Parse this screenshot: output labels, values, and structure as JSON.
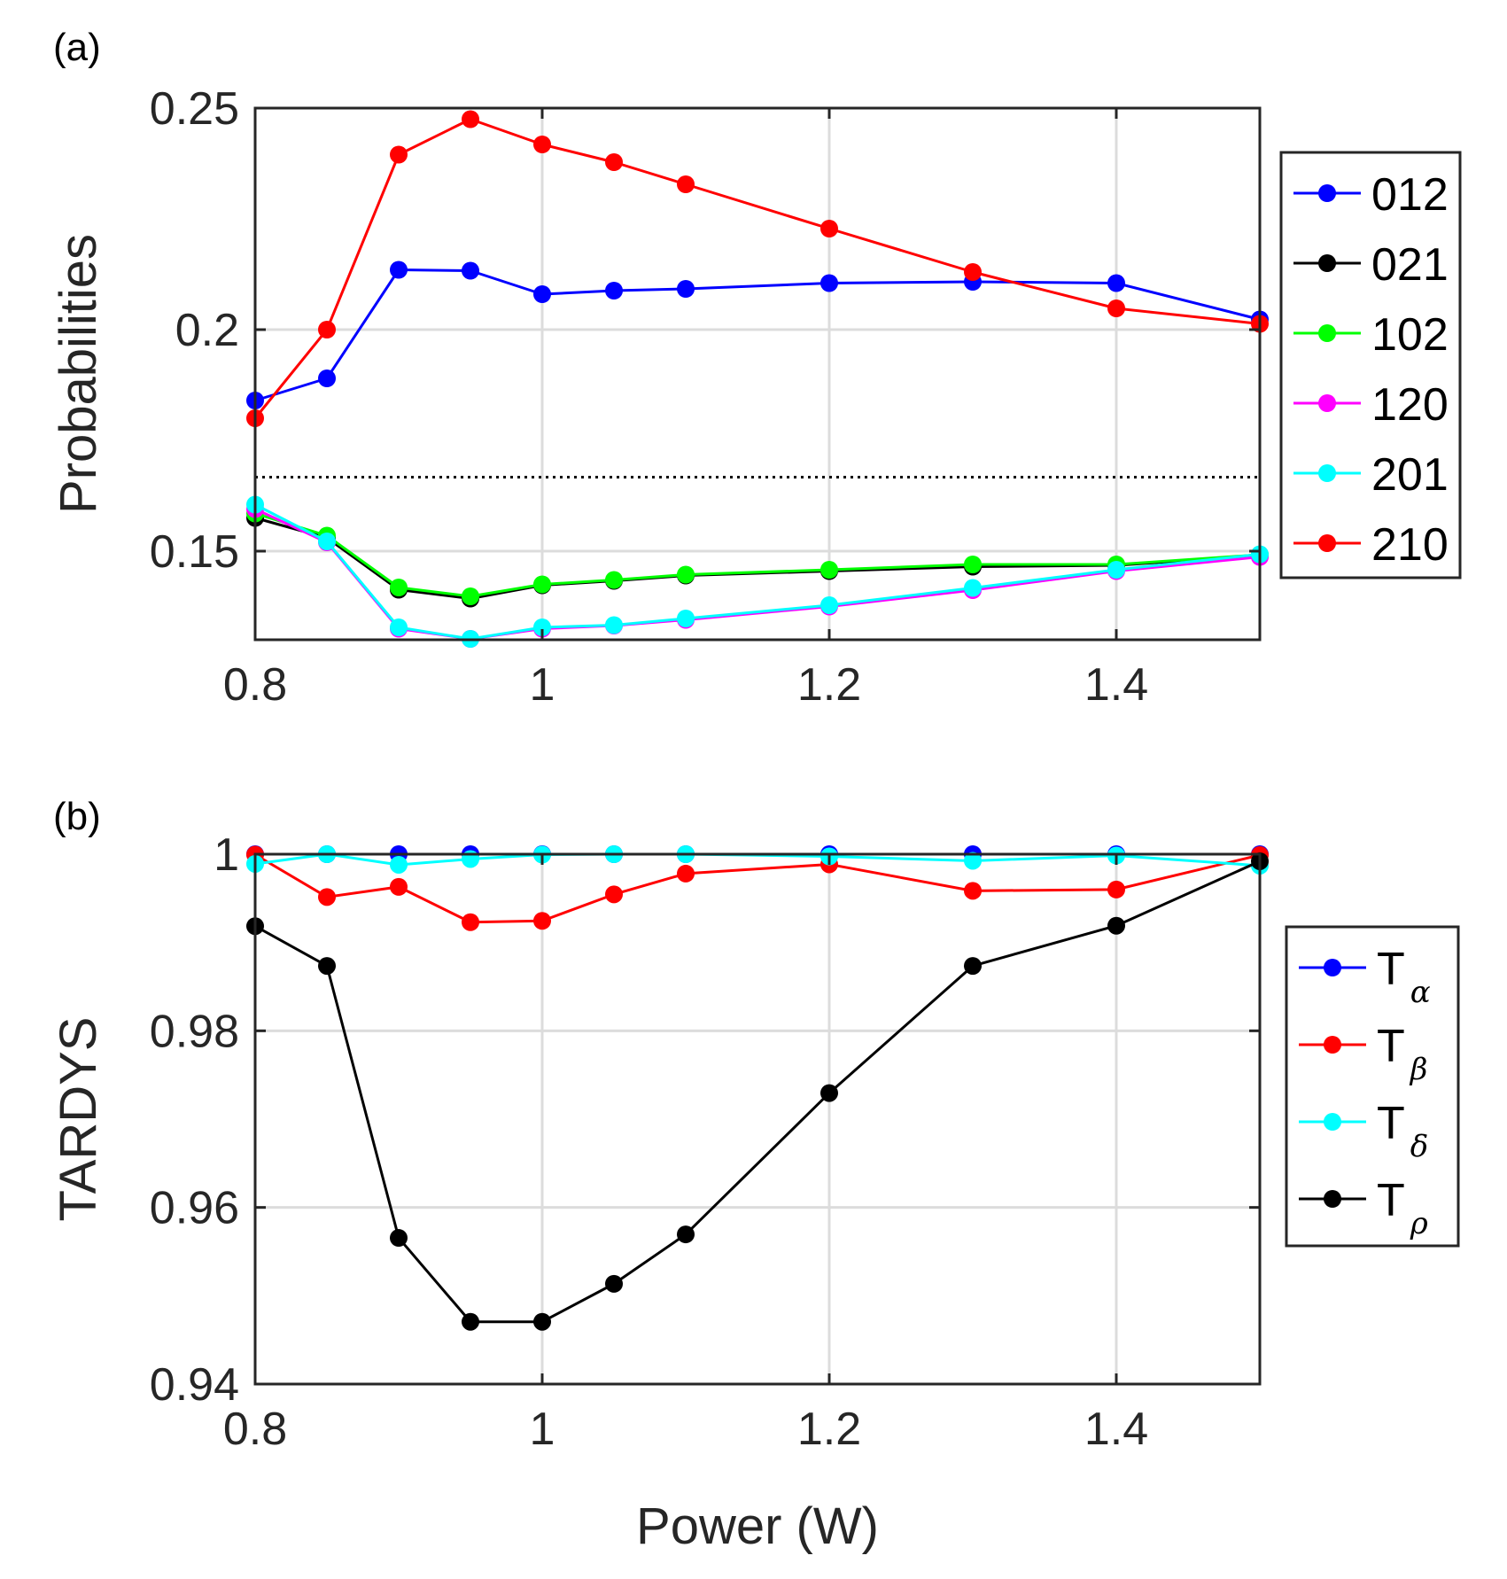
{
  "chart_data": [
    {
      "type": "line",
      "panel_label": "(a)",
      "title": "",
      "xlabel": "",
      "ylabel": "Probabilities",
      "xlim": [
        0.8,
        1.5
      ],
      "ylim": [
        0.13,
        0.25
      ],
      "grid": true,
      "xticks": [
        0.8,
        1.0,
        1.2,
        1.4
      ],
      "xtick_labels": [
        "0.8",
        "1",
        "1.2",
        "1.4"
      ],
      "yticks": [
        0.15,
        0.2,
        0.25
      ],
      "ytick_labels": [
        "0.15",
        "0.2",
        "0.25"
      ],
      "reference_line": {
        "y": 0.1667,
        "style": "dotted",
        "color": "#000000"
      },
      "legend_position": "outside-right-top",
      "x": [
        0.8,
        0.85,
        0.9,
        0.95,
        1.0,
        1.05,
        1.1,
        1.2,
        1.3,
        1.4,
        1.5
      ],
      "series": [
        {
          "name": "012",
          "color": "#0000ff",
          "values": [
            0.184,
            0.189,
            0.2135,
            0.2133,
            0.208,
            0.2088,
            0.2092,
            0.2105,
            0.2108,
            0.2105,
            0.2023
          ]
        },
        {
          "name": "021",
          "color": "#000000",
          "values": [
            0.1575,
            0.153,
            0.1413,
            0.1393,
            0.1423,
            0.1433,
            0.1445,
            0.1455,
            0.1465,
            0.1468,
            0.149
          ]
        },
        {
          "name": "102",
          "color": "#00ff00",
          "values": [
            0.1585,
            0.1535,
            0.1418,
            0.1398,
            0.1425,
            0.1435,
            0.1447,
            0.1458,
            0.147,
            0.147,
            0.1492
          ]
        },
        {
          "name": "120",
          "color": "#ff00ff",
          "values": [
            0.1595,
            0.152,
            0.1325,
            0.1302,
            0.1325,
            0.1332,
            0.1345,
            0.1375,
            0.1412,
            0.1455,
            0.1487
          ]
        },
        {
          "name": "201",
          "color": "#00ffff",
          "values": [
            0.1605,
            0.1522,
            0.1328,
            0.1302,
            0.1328,
            0.1333,
            0.1348,
            0.1378,
            0.1417,
            0.1458,
            0.1493
          ]
        },
        {
          "name": "210",
          "color": "#ff0000",
          "values": [
            0.18,
            0.2,
            0.2395,
            0.2475,
            0.2418,
            0.2378,
            0.2328,
            0.2228,
            0.213,
            0.2048,
            0.2013
          ]
        }
      ]
    },
    {
      "type": "line",
      "panel_label": "(b)",
      "title": "",
      "xlabel": "Power (W)",
      "ylabel": "TARDYS",
      "xlim": [
        0.8,
        1.5
      ],
      "ylim": [
        0.94,
        1.0
      ],
      "grid": true,
      "xticks": [
        0.8,
        1.0,
        1.2,
        1.4
      ],
      "xtick_labels": [
        "0.8",
        "1",
        "1.2",
        "1.4"
      ],
      "yticks": [
        0.94,
        0.96,
        0.98,
        1.0
      ],
      "ytick_labels": [
        "0.94",
        "0.96",
        "0.98",
        "1"
      ],
      "legend_position": "outside-right-middle",
      "x": [
        0.8,
        0.85,
        0.9,
        0.95,
        1.0,
        1.05,
        1.1,
        1.2,
        1.3,
        1.4,
        1.5
      ],
      "series": [
        {
          "name": "T",
          "subscript": "α",
          "color": "#0000ff",
          "values": [
            1.0,
            1.0,
            1.0,
            1.0,
            1.0,
            1.0,
            1.0,
            1.0,
            1.0,
            1.0,
            1.0
          ]
        },
        {
          "name": "T",
          "subscript": "β",
          "color": "#ff0000",
          "values": [
            0.99995,
            0.99515,
            0.9963,
            0.9923,
            0.99245,
            0.99545,
            0.9978,
            0.99885,
            0.99585,
            0.996,
            0.9999
          ]
        },
        {
          "name": "T",
          "subscript": "δ",
          "color": "#00ffff",
          "values": [
            0.9989,
            1.0,
            0.9988,
            0.99945,
            0.99995,
            1.0,
            1.0,
            0.99975,
            0.99925,
            0.99985,
            0.9987
          ]
        },
        {
          "name": "T",
          "subscript": "ρ",
          "color": "#000000",
          "values": [
            0.99185,
            0.98735,
            0.95655,
            0.94705,
            0.94705,
            0.95135,
            0.95695,
            0.97295,
            0.98735,
            0.9919,
            0.9992
          ]
        }
      ]
    }
  ]
}
